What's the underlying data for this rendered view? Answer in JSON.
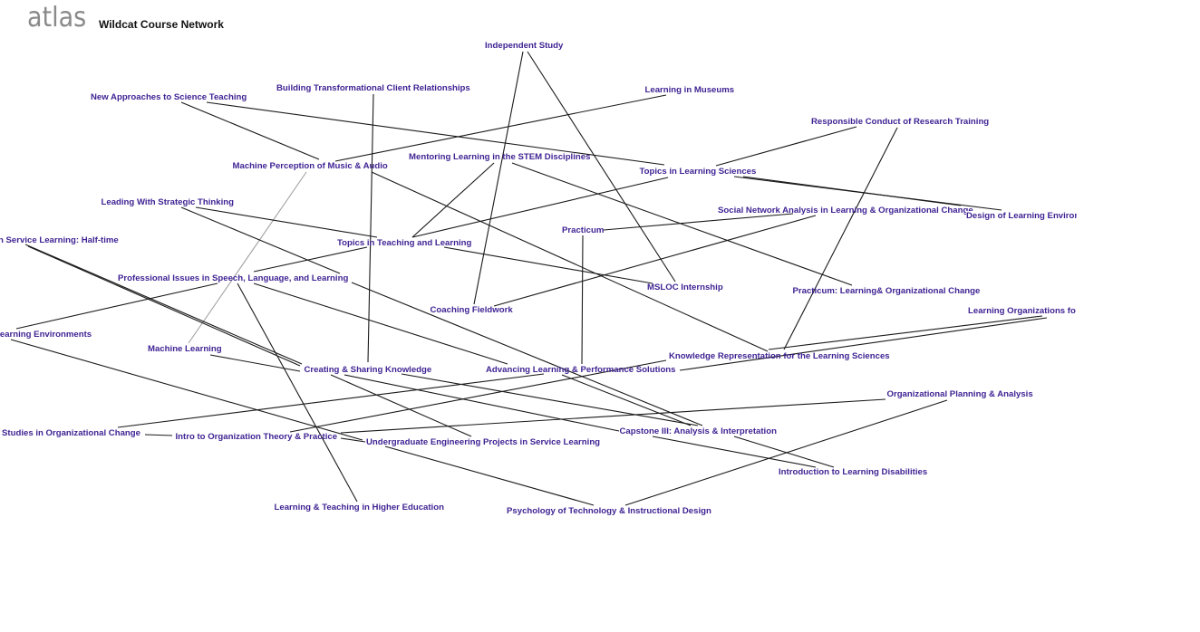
{
  "header": {
    "logo": "atlas",
    "title": "Wildcat Course Network"
  },
  "colors": {
    "node_label": "#3f2393",
    "edge": "#1a1a1a",
    "edge_secondary": "#a0a0a0"
  },
  "nodes": [
    "Independent Study",
    "Building Transformational Client Relationships",
    "New Approaches to Science Teaching",
    "Learning in Museums",
    "Responsible Conduct of Research Training",
    "Machine Perception of Music & Audio",
    "Mentoring Learning in the STEM Disciplines",
    "Topics in Learning Sciences",
    "Leading With Strategic Thinking",
    "Social Network Analysis in Learning & Organizational Change",
    "Design of Learning Environ",
    "Practicum",
    "n Service Learning: Half-time",
    "Topics in Teaching and Learning",
    "Professional Issues in Speech, Language, and Learning",
    "MSLOC Internship",
    "Practicum: Learning& Organizational Change",
    "Coaching Fieldwork",
    "Learning Organizations fo",
    "Learning Environments",
    "Machine Learning",
    "Knowledge Representation for the Learning Sciences",
    "Creating & Sharing Knowledge",
    "Advancing Learning & Performance Solutions",
    "Organizational Planning & Analysis",
    "Capstone III: Analysis & Interpretation",
    "Studies in Organizational Change",
    "Intro to Organization Theory & Practice",
    "Undergraduate Engineering Projects in Service Learning",
    "Introduction to Learning Disabilities",
    "Learning & Teaching in Higher Education",
    "Psychology of Technology & Instructional Design"
  ],
  "edges": [
    [
      "Independent Study",
      "Coaching Fieldwork"
    ],
    [
      "Independent Study",
      "MSLOC Internship"
    ],
    [
      "Mentoring Learning in the STEM Disciplines",
      "Topics in Teaching and Learning"
    ],
    [
      "Topics in Teaching and Learning",
      "Topics in Learning Sciences"
    ],
    [
      "Building Transformational Client Relationships",
      "Creating & Sharing Knowledge"
    ],
    [
      "New Approaches to Science Teaching",
      "Machine Perception of Music & Audio"
    ],
    [
      "New Approaches to Science Teaching",
      "Topics in Learning Sciences"
    ],
    [
      "Learning in Museums",
      "Machine Perception of Music & Audio"
    ],
    [
      "Machine Perception of Music & Audio",
      "Knowledge Representation for the Learning Sciences"
    ],
    [
      "Machine Perception of Music & Audio",
      "Machine Learning"
    ],
    [
      "Mentoring Learning in the STEM Disciplines",
      "Practicum: Learning& Organizational Change"
    ],
    [
      "Responsible Conduct of Research Training",
      "Topics in Learning Sciences"
    ],
    [
      "Responsible Conduct of Research Training",
      "Knowledge Representation for the Learning Sciences"
    ],
    [
      "Topics in Learning Sciences",
      "Design of Learning Environ"
    ],
    [
      "Topics in Learning Sciences",
      "Design of Learning Environ"
    ],
    [
      "Social Network Analysis in Learning & Organizational Change",
      "Coaching Fieldwork"
    ],
    [
      "Practicum",
      "Social Network Analysis in Learning & Organizational Change"
    ],
    [
      "Practicum",
      "Advancing Learning & Performance Solutions"
    ],
    [
      "Leading With Strategic Thinking",
      "Topics in Teaching and Learning"
    ],
    [
      "Leading With Strategic Thinking",
      "Professional Issues in Speech, Language, and Learning"
    ],
    [
      "Professional Issues in Speech, Language, and Learning",
      "Capstone III: Analysis & Interpretation"
    ],
    [
      "Professional Issues in Speech, Language, and Learning",
      "Advancing Learning & Performance Solutions"
    ],
    [
      "Topics in Teaching and Learning",
      "MSLOC Internship"
    ],
    [
      "Topics in Teaching and Learning",
      "Professional Issues in Speech, Language, and Learning"
    ],
    [
      "Professional Issues in Speech, Language, and Learning",
      "Learning Environments"
    ],
    [
      "Professional Issues in Speech, Language, and Learning",
      "Learning & Teaching in Higher Education"
    ],
    [
      "n Service Learning: Half-time",
      "Creating & Sharing Knowledge"
    ],
    [
      "n Service Learning: Half-time",
      "Creating & Sharing Knowledge"
    ],
    [
      "Learning Environments",
      "Undergraduate Engineering Projects in Service Learning"
    ],
    [
      "Machine Learning",
      "Creating & Sharing Knowledge"
    ],
    [
      "Creating & Sharing Knowledge",
      "Undergraduate Engineering Projects in Service Learning"
    ],
    [
      "Creating & Sharing Knowledge",
      "Capstone III: Analysis & Interpretation"
    ],
    [
      "Creating & Sharing Knowledge",
      "Capstone III: Analysis & Interpretation"
    ],
    [
      "Studies in Organizational Change",
      "Intro to Organization Theory & Practice"
    ],
    [
      "Studies in Organizational Change",
      "Advancing Learning & Performance Solutions"
    ],
    [
      "Intro to Organization Theory & Practice",
      "Knowledge Representation for the Learning Sciences"
    ],
    [
      "Intro to Organization Theory & Practice",
      "Organizational Planning & Analysis"
    ],
    [
      "Intro to Organization Theory & Practice",
      "Undergraduate Engineering Projects in Service Learning"
    ],
    [
      "Undergraduate Engineering Projects in Service Learning",
      "Psychology of Technology & Instructional Design"
    ],
    [
      "Psychology of Technology & Instructional Design",
      "Organizational Planning & Analysis"
    ],
    [
      "Capstone III: Analysis & Interpretation",
      "Introduction to Learning Disabilities"
    ],
    [
      "Capstone III: Analysis & Interpretation",
      "Introduction to Learning Disabilities"
    ],
    [
      "Knowledge Representation for the Learning Sciences",
      "Learning Organizations fo"
    ],
    [
      "Advancing Learning & Performance Solutions",
      "Learning Organizations fo"
    ],
    [
      "Advancing Learning & Performance Solutions",
      "Capstone III: Analysis & Interpretation"
    ]
  ]
}
